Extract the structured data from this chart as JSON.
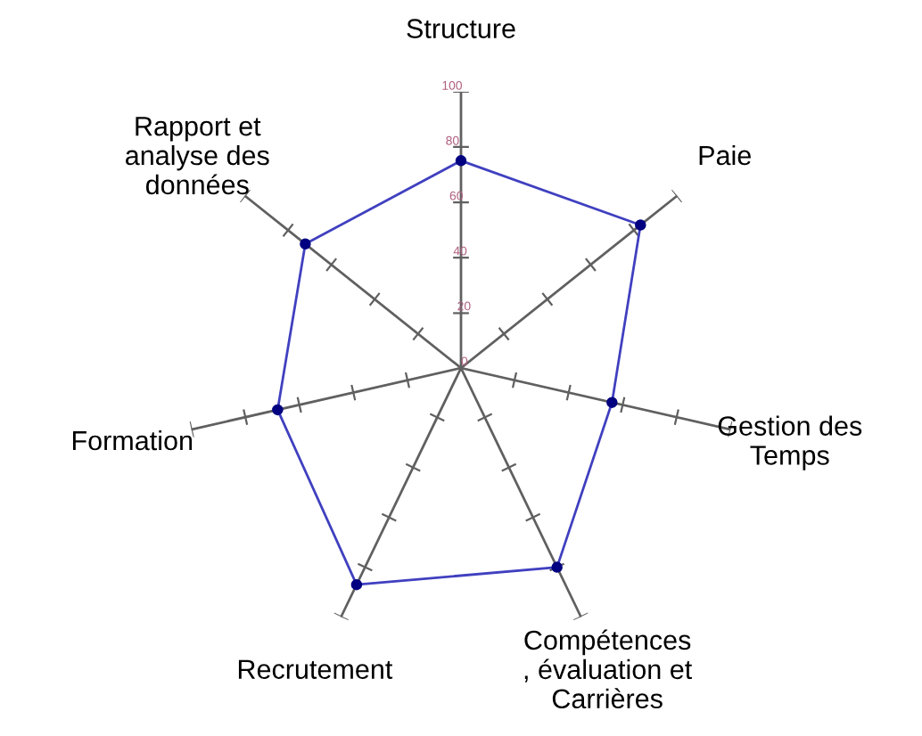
{
  "chart_data": {
    "type": "radar",
    "categories": [
      "Structure",
      "Paie",
      "Gestion des\nTemps",
      "Compétences\n, évaluation et\nCarrières",
      "Recrutement",
      "Formation",
      "Rapport et\nanalyse des\ndonnées"
    ],
    "series": [
      {
        "color": "#4040c0",
        "values": [
          75,
          83,
          56,
          80,
          87,
          68,
          72
        ]
      }
    ],
    "ylim": [
      0,
      100
    ],
    "yticks": [
      0,
      20,
      40,
      60,
      80,
      100
    ],
    "marker": "circle"
  }
}
